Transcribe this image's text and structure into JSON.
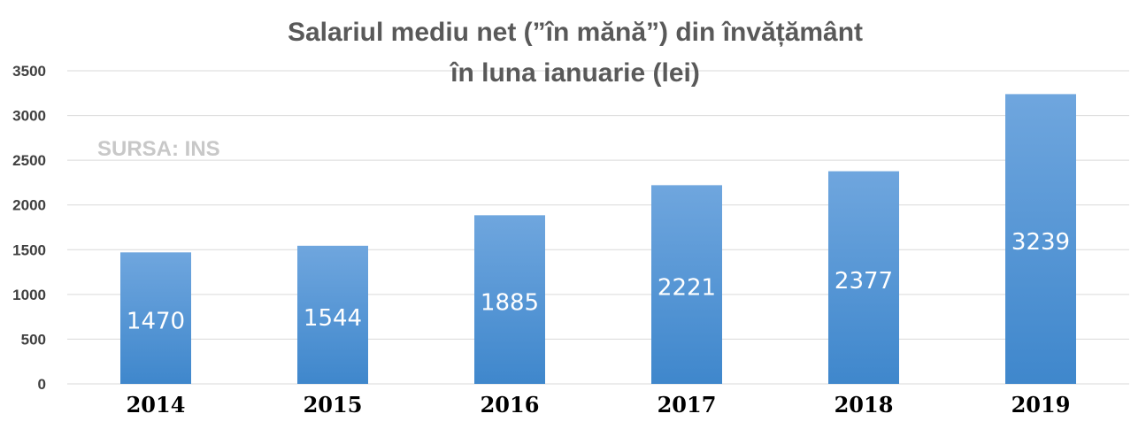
{
  "chart_data": {
    "type": "bar",
    "title": [
      "Salariul mediu net (”în mănă”) din învățământ",
      "în luna ianuarie (lei)"
    ],
    "source_note": "SURSA: INS",
    "categories": [
      "2014",
      "2015",
      "2016",
      "2017",
      "2018",
      "2019"
    ],
    "values": [
      1470,
      1544,
      1885,
      2221,
      2377,
      3239
    ],
    "ylim": [
      0,
      3500
    ],
    "yticks": [
      0,
      500,
      1000,
      1500,
      2000,
      2500,
      3000,
      3500
    ],
    "grid": true,
    "legend": "none",
    "colors": {
      "bar_top": "#6fa6de",
      "bar_bottom": "#3f87cc",
      "grid": "#d9d9d9"
    }
  }
}
